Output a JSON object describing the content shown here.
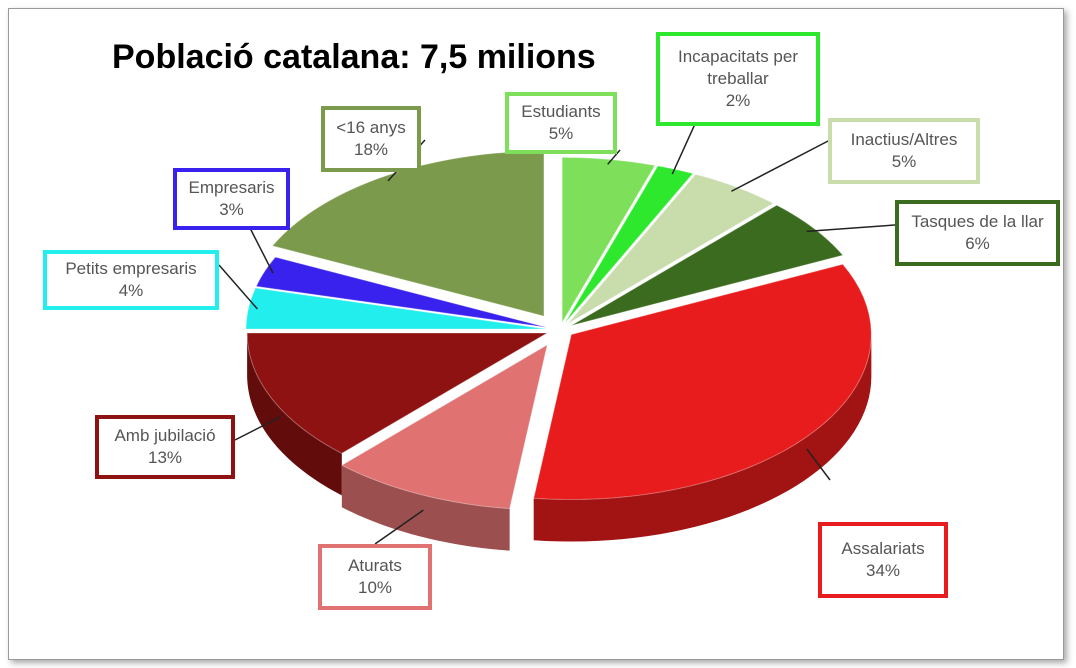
{
  "chart_data": {
    "type": "pie",
    "title": "Població catalana: 7,5 milions",
    "categories": [
      "Estudiants",
      "Incapacitats per treballar",
      "Inactius/Altres",
      "Tasques de la llar",
      "Assalariats",
      "Aturats",
      "Amb jubilació",
      "Petits empresaris",
      "Empresaris",
      "<16 anys"
    ],
    "values": [
      5,
      2,
      5,
      6,
      34,
      10,
      13,
      4,
      3,
      18
    ],
    "value_labels": [
      "5%",
      "2%",
      "5%",
      "6%",
      "34%",
      "10%",
      "13%",
      "4%",
      "3%",
      "18%"
    ],
    "colors": [
      "#7ee05a",
      "#2ee82e",
      "#c9dcab",
      "#3b6b1e",
      "#e81c1c",
      "#e07272",
      "#8e1212",
      "#22eeee",
      "#3a22ee",
      "#7b9a4b"
    ]
  }
}
